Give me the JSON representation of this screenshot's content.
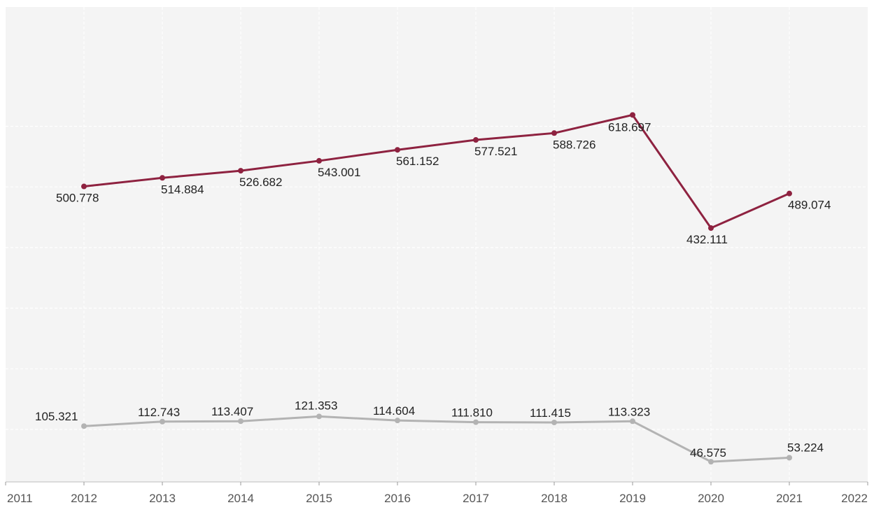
{
  "chart_data": {
    "type": "line",
    "x": [
      2012,
      2013,
      2014,
      2015,
      2016,
      2017,
      2018,
      2019,
      2020,
      2021
    ],
    "x_ticks": [
      "2011",
      "2012",
      "2013",
      "2014",
      "2015",
      "2016",
      "2017",
      "2018",
      "2019",
      "2020",
      "2021",
      "2022"
    ],
    "xlim": [
      2011,
      2022
    ],
    "ylim": [
      0,
      650
    ],
    "grid": true,
    "series": [
      {
        "color": "#8e2240",
        "values": [
          500.778,
          514.884,
          526.682,
          543.001,
          561.152,
          577.521,
          588.726,
          618.697,
          432.111,
          489.074
        ],
        "labels": [
          "500.778",
          "514.884",
          "526.682",
          "543.001",
          "561.152",
          "577.521",
          "588.726",
          "618.697",
          "432.111",
          "489.074"
        ]
      },
      {
        "color": "#b3b3b3",
        "values": [
          105.321,
          112.743,
          113.407,
          121.353,
          114.604,
          111.81,
          111.415,
          113.323,
          46.575,
          53.224
        ],
        "labels": [
          "105.321",
          "112.743",
          "113.407",
          "121.353",
          "114.604",
          "111.810",
          "111.415",
          "113.323",
          "46.575",
          "53.224"
        ]
      }
    ]
  }
}
